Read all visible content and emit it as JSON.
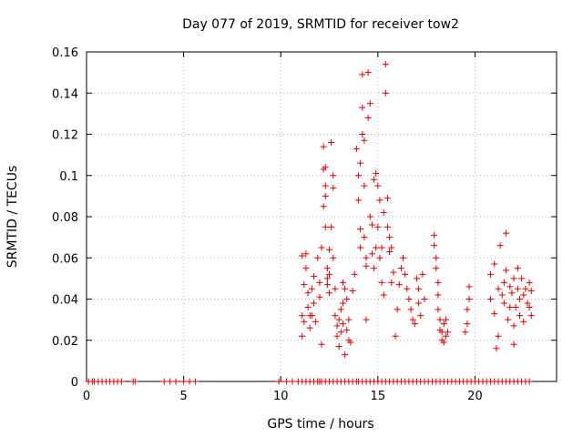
{
  "chart_data": {
    "type": "scatter",
    "title": "Day 077 of 2019, SRMTID for receiver tow2",
    "xlabel": "GPS time / hours",
    "ylabel": "SRMTID / TECUs",
    "xlim": [
      0,
      24.2
    ],
    "ylim": [
      0,
      0.16
    ],
    "xticks": [
      0,
      5,
      10,
      15,
      20
    ],
    "xtick_labels": [
      "0",
      "5",
      "10",
      "15",
      "20"
    ],
    "yticks": [
      0,
      0.02,
      0.04,
      0.06,
      0.08,
      0.1,
      0.12,
      0.14,
      0.16
    ],
    "ytick_labels": [
      "0",
      "0.02",
      "0.04",
      "0.06",
      "0.08",
      "0.1",
      "0.12",
      "0.14",
      "0.16"
    ],
    "grid": true,
    "marker": "+",
    "color": "#e00000",
    "series": [
      {
        "name": "SRMTID",
        "points": [
          [
            0.1,
            0
          ],
          [
            0.3,
            0
          ],
          [
            0.4,
            0
          ],
          [
            0.6,
            0
          ],
          [
            0.8,
            0
          ],
          [
            1.0,
            0
          ],
          [
            1.2,
            0
          ],
          [
            1.4,
            0
          ],
          [
            1.6,
            0
          ],
          [
            1.8,
            0
          ],
          [
            2.4,
            0
          ],
          [
            2.5,
            0
          ],
          [
            4.0,
            0
          ],
          [
            4.3,
            0
          ],
          [
            4.6,
            0
          ],
          [
            5.0,
            0
          ],
          [
            5.3,
            0
          ],
          [
            5.6,
            0
          ],
          [
            9.9,
            0
          ],
          [
            10.3,
            0
          ],
          [
            10.6,
            0
          ],
          [
            10.9,
            0
          ],
          [
            11.1,
            0
          ],
          [
            11.3,
            0
          ],
          [
            11.5,
            0
          ],
          [
            11.7,
            0
          ],
          [
            11.9,
            0
          ],
          [
            12.0,
            0
          ],
          [
            12.1,
            0
          ],
          [
            12.3,
            0
          ],
          [
            12.5,
            0
          ],
          [
            12.7,
            0
          ],
          [
            12.9,
            0
          ],
          [
            13.1,
            0
          ],
          [
            13.3,
            0
          ],
          [
            13.5,
            0
          ],
          [
            13.7,
            0
          ],
          [
            13.9,
            0
          ],
          [
            14.0,
            0
          ],
          [
            14.2,
            0
          ],
          [
            14.4,
            0
          ],
          [
            14.6,
            0
          ],
          [
            14.8,
            0
          ],
          [
            15.0,
            0
          ],
          [
            15.2,
            0
          ],
          [
            15.4,
            0
          ],
          [
            15.6,
            0
          ],
          [
            15.8,
            0
          ],
          [
            16.0,
            0
          ],
          [
            16.2,
            0
          ],
          [
            16.4,
            0
          ],
          [
            16.6,
            0
          ],
          [
            16.8,
            0
          ],
          [
            17.0,
            0
          ],
          [
            17.2,
            0
          ],
          [
            17.4,
            0
          ],
          [
            17.6,
            0
          ],
          [
            17.8,
            0
          ],
          [
            18.0,
            0
          ],
          [
            18.2,
            0
          ],
          [
            18.4,
            0
          ],
          [
            18.6,
            0
          ],
          [
            18.8,
            0
          ],
          [
            19.0,
            0
          ],
          [
            19.2,
            0
          ],
          [
            19.4,
            0
          ],
          [
            19.6,
            0
          ],
          [
            19.8,
            0
          ],
          [
            20.0,
            0
          ],
          [
            20.2,
            0
          ],
          [
            20.4,
            0
          ],
          [
            20.6,
            0
          ],
          [
            20.8,
            0
          ],
          [
            21.0,
            0
          ],
          [
            21.2,
            0
          ],
          [
            21.4,
            0
          ],
          [
            21.6,
            0
          ],
          [
            21.8,
            0
          ],
          [
            22.0,
            0
          ],
          [
            22.2,
            0
          ],
          [
            22.4,
            0
          ],
          [
            22.6,
            0
          ],
          [
            22.8,
            0
          ],
          [
            11.1,
            0.061
          ],
          [
            11.1,
            0.032
          ],
          [
            11.1,
            0.022
          ],
          [
            11.2,
            0.029
          ],
          [
            11.2,
            0.047
          ],
          [
            11.3,
            0.062
          ],
          [
            11.3,
            0.055
          ],
          [
            11.4,
            0.043
          ],
          [
            11.4,
            0.036
          ],
          [
            11.5,
            0.032
          ],
          [
            11.5,
            0.026
          ],
          [
            11.6,
            0.032
          ],
          [
            11.6,
            0.045
          ],
          [
            11.7,
            0.051
          ],
          [
            11.7,
            0.038
          ],
          [
            11.8,
            0.029
          ],
          [
            11.9,
            0.06
          ],
          [
            12.0,
            0.048
          ],
          [
            12.0,
            0.041
          ],
          [
            12.1,
            0.065
          ],
          [
            12.1,
            0.018
          ],
          [
            12.2,
            0.114
          ],
          [
            12.2,
            0.103
          ],
          [
            12.2,
            0.085
          ],
          [
            12.3,
            0.104
          ],
          [
            12.3,
            0.095
          ],
          [
            12.3,
            0.09
          ],
          [
            12.3,
            0.075
          ],
          [
            12.4,
            0.055
          ],
          [
            12.4,
            0.05
          ],
          [
            12.4,
            0.047
          ],
          [
            12.5,
            0.064
          ],
          [
            12.5,
            0.052
          ],
          [
            12.5,
            0.043
          ],
          [
            12.6,
            0.075
          ],
          [
            12.6,
            0.116
          ],
          [
            12.7,
            0.1
          ],
          [
            12.7,
            0.094
          ],
          [
            12.7,
            0.06
          ],
          [
            12.8,
            0.045
          ],
          [
            12.8,
            0.032
          ],
          [
            12.9,
            0.027
          ],
          [
            12.9,
            0.022
          ],
          [
            13.0,
            0.017
          ],
          [
            13.0,
            0.03
          ],
          [
            13.1,
            0.035
          ],
          [
            13.1,
            0.024
          ],
          [
            13.2,
            0.028
          ],
          [
            13.2,
            0.038
          ],
          [
            13.2,
            0.048
          ],
          [
            13.3,
            0.045
          ],
          [
            13.3,
            0.013
          ],
          [
            13.4,
            0.025
          ],
          [
            13.4,
            0.04
          ],
          [
            13.5,
            0.03
          ],
          [
            13.5,
            0.02
          ],
          [
            13.6,
            0.019
          ],
          [
            13.7,
            0.044
          ],
          [
            13.8,
            0.052
          ],
          [
            13.9,
            0.113
          ],
          [
            14.0,
            0.1
          ],
          [
            14.0,
            0.088
          ],
          [
            14.1,
            0.074
          ],
          [
            14.1,
            0.065
          ],
          [
            14.1,
            0.106
          ],
          [
            14.2,
            0.12
          ],
          [
            14.2,
            0.133
          ],
          [
            14.2,
            0.149
          ],
          [
            14.3,
            0.117
          ],
          [
            14.3,
            0.095
          ],
          [
            14.3,
            0.07
          ],
          [
            14.4,
            0.06
          ],
          [
            14.4,
            0.056
          ],
          [
            14.4,
            0.03
          ],
          [
            14.5,
            0.15
          ],
          [
            14.5,
            0.128
          ],
          [
            14.6,
            0.135
          ],
          [
            14.6,
            0.08
          ],
          [
            14.7,
            0.076
          ],
          [
            14.7,
            0.062
          ],
          [
            14.8,
            0.098
          ],
          [
            14.8,
            0.055
          ],
          [
            14.9,
            0.065
          ],
          [
            14.9,
            0.101
          ],
          [
            15.0,
            0.095
          ],
          [
            15.0,
            0.075
          ],
          [
            15.1,
            0.088
          ],
          [
            15.1,
            0.06
          ],
          [
            15.2,
            0.065
          ],
          [
            15.2,
            0.048
          ],
          [
            15.3,
            0.042
          ],
          [
            15.3,
            0.082
          ],
          [
            15.4,
            0.14
          ],
          [
            15.4,
            0.154
          ],
          [
            15.5,
            0.089
          ],
          [
            15.5,
            0.075
          ],
          [
            15.6,
            0.07
          ],
          [
            15.6,
            0.063
          ],
          [
            15.7,
            0.065
          ],
          [
            15.7,
            0.048
          ],
          [
            15.8,
            0.053
          ],
          [
            15.9,
            0.022
          ],
          [
            16.0,
            0.035
          ],
          [
            16.1,
            0.047
          ],
          [
            16.2,
            0.055
          ],
          [
            16.3,
            0.06
          ],
          [
            16.4,
            0.052
          ],
          [
            16.5,
            0.045
          ],
          [
            16.6,
            0.04
          ],
          [
            16.7,
            0.035
          ],
          [
            16.8,
            0.03
          ],
          [
            16.9,
            0.028
          ],
          [
            17.0,
            0.05
          ],
          [
            17.1,
            0.045
          ],
          [
            17.1,
            0.038
          ],
          [
            17.2,
            0.032
          ],
          [
            17.3,
            0.052
          ],
          [
            17.4,
            0.04
          ],
          [
            17.9,
            0.071
          ],
          [
            17.9,
            0.066
          ],
          [
            18.0,
            0.06
          ],
          [
            18.0,
            0.055
          ],
          [
            18.1,
            0.048
          ],
          [
            18.1,
            0.042
          ],
          [
            18.1,
            0.035
          ],
          [
            18.2,
            0.03
          ],
          [
            18.2,
            0.025
          ],
          [
            18.3,
            0.024
          ],
          [
            18.3,
            0.02
          ],
          [
            18.4,
            0.019
          ],
          [
            18.4,
            0.028
          ],
          [
            18.5,
            0.022
          ],
          [
            18.5,
            0.03
          ],
          [
            18.6,
            0.024
          ],
          [
            19.5,
            0.024
          ],
          [
            19.6,
            0.028
          ],
          [
            19.6,
            0.035
          ],
          [
            19.7,
            0.04
          ],
          [
            19.7,
            0.046
          ],
          [
            20.8,
            0.052
          ],
          [
            20.8,
            0.04
          ],
          [
            21.0,
            0.057
          ],
          [
            21.0,
            0.033
          ],
          [
            21.1,
            0.016
          ],
          [
            21.2,
            0.022
          ],
          [
            21.2,
            0.045
          ],
          [
            21.3,
            0.066
          ],
          [
            21.4,
            0.042
          ],
          [
            21.5,
            0.048
          ],
          [
            21.5,
            0.038
          ],
          [
            21.6,
            0.072
          ],
          [
            21.6,
            0.054
          ],
          [
            21.7,
            0.03
          ],
          [
            21.8,
            0.036
          ],
          [
            21.8,
            0.046
          ],
          [
            21.9,
            0.043
          ],
          [
            22.0,
            0.05
          ],
          [
            22.0,
            0.027
          ],
          [
            22.0,
            0.018
          ],
          [
            22.1,
            0.036
          ],
          [
            22.2,
            0.045
          ],
          [
            22.2,
            0.055
          ],
          [
            22.3,
            0.04
          ],
          [
            22.3,
            0.032
          ],
          [
            22.4,
            0.05
          ],
          [
            22.5,
            0.042
          ],
          [
            22.5,
            0.029
          ],
          [
            22.6,
            0.045
          ],
          [
            22.7,
            0.038
          ],
          [
            22.8,
            0.048
          ],
          [
            22.8,
            0.036
          ],
          [
            22.9,
            0.032
          ],
          [
            22.9,
            0.044
          ]
        ]
      }
    ]
  }
}
